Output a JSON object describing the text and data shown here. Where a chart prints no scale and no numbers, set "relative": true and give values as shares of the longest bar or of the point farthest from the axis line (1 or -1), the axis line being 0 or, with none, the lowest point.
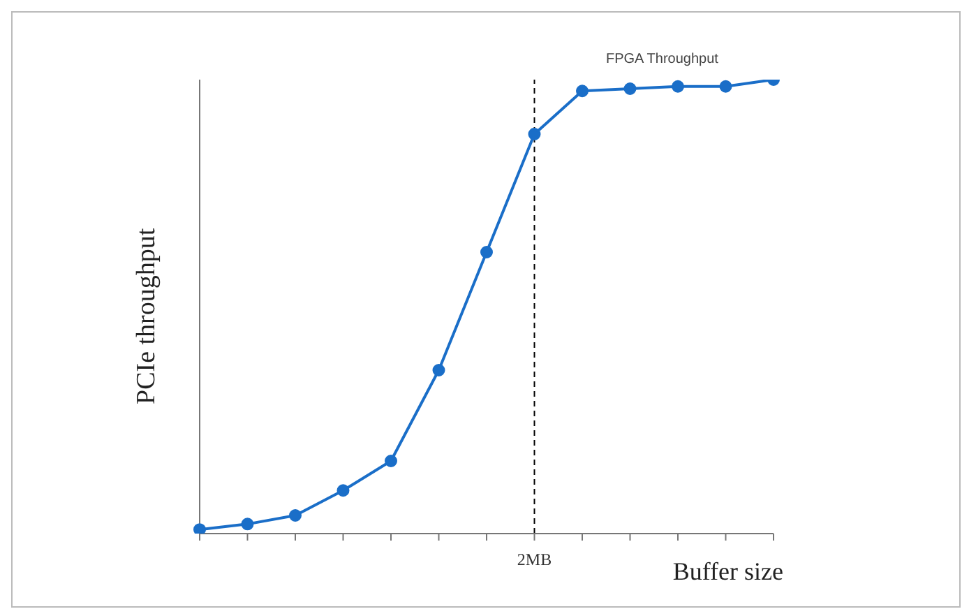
{
  "chart_data": {
    "type": "line",
    "relative": true,
    "xlabel": "Buffer size",
    "ylabel": "PCIe throughput",
    "categories": [
      null,
      null,
      null,
      null,
      null,
      null,
      null,
      null,
      null,
      null,
      null,
      null,
      null
    ],
    "values": [
      0.009,
      0.021,
      0.04,
      0.095,
      0.16,
      0.36,
      0.62,
      0.88,
      0.975,
      0.98,
      0.985,
      0.985,
      1.0
    ],
    "color": "#1a6ec8",
    "marker": "circle",
    "line_style": "solid",
    "legend": false,
    "grid": false,
    "annotations": [
      "2MB",
      "FPGA Throughput"
    ]
  }
}
